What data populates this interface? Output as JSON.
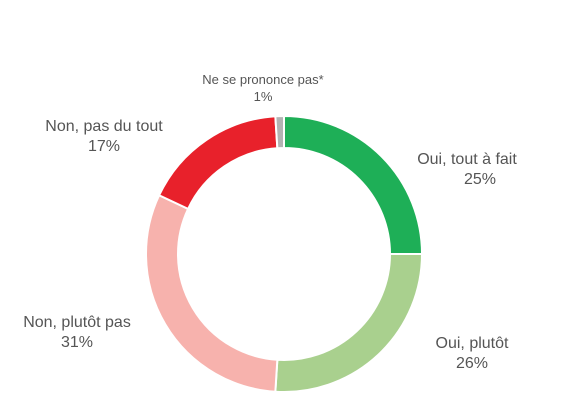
{
  "chart_data": {
    "type": "pie",
    "donut": true,
    "legend": "none",
    "slices": [
      {
        "label": "Oui, tout à fait",
        "value": 25,
        "value_text": "25%",
        "color": "#1eaf57"
      },
      {
        "label": "Oui, plutôt",
        "value": 26,
        "value_text": "26%",
        "color": "#a9d08e"
      },
      {
        "label": "Non, plutôt pas",
        "value": 31,
        "value_text": "31%",
        "color": "#f7b2ad"
      },
      {
        "label": "Non, pas du tout",
        "value": 17,
        "value_text": "17%",
        "color": "#e8212b"
      },
      {
        "label": "Ne se prononce pas*",
        "value": 1,
        "value_text": "1%",
        "color": "#b3b3b3"
      }
    ]
  }
}
